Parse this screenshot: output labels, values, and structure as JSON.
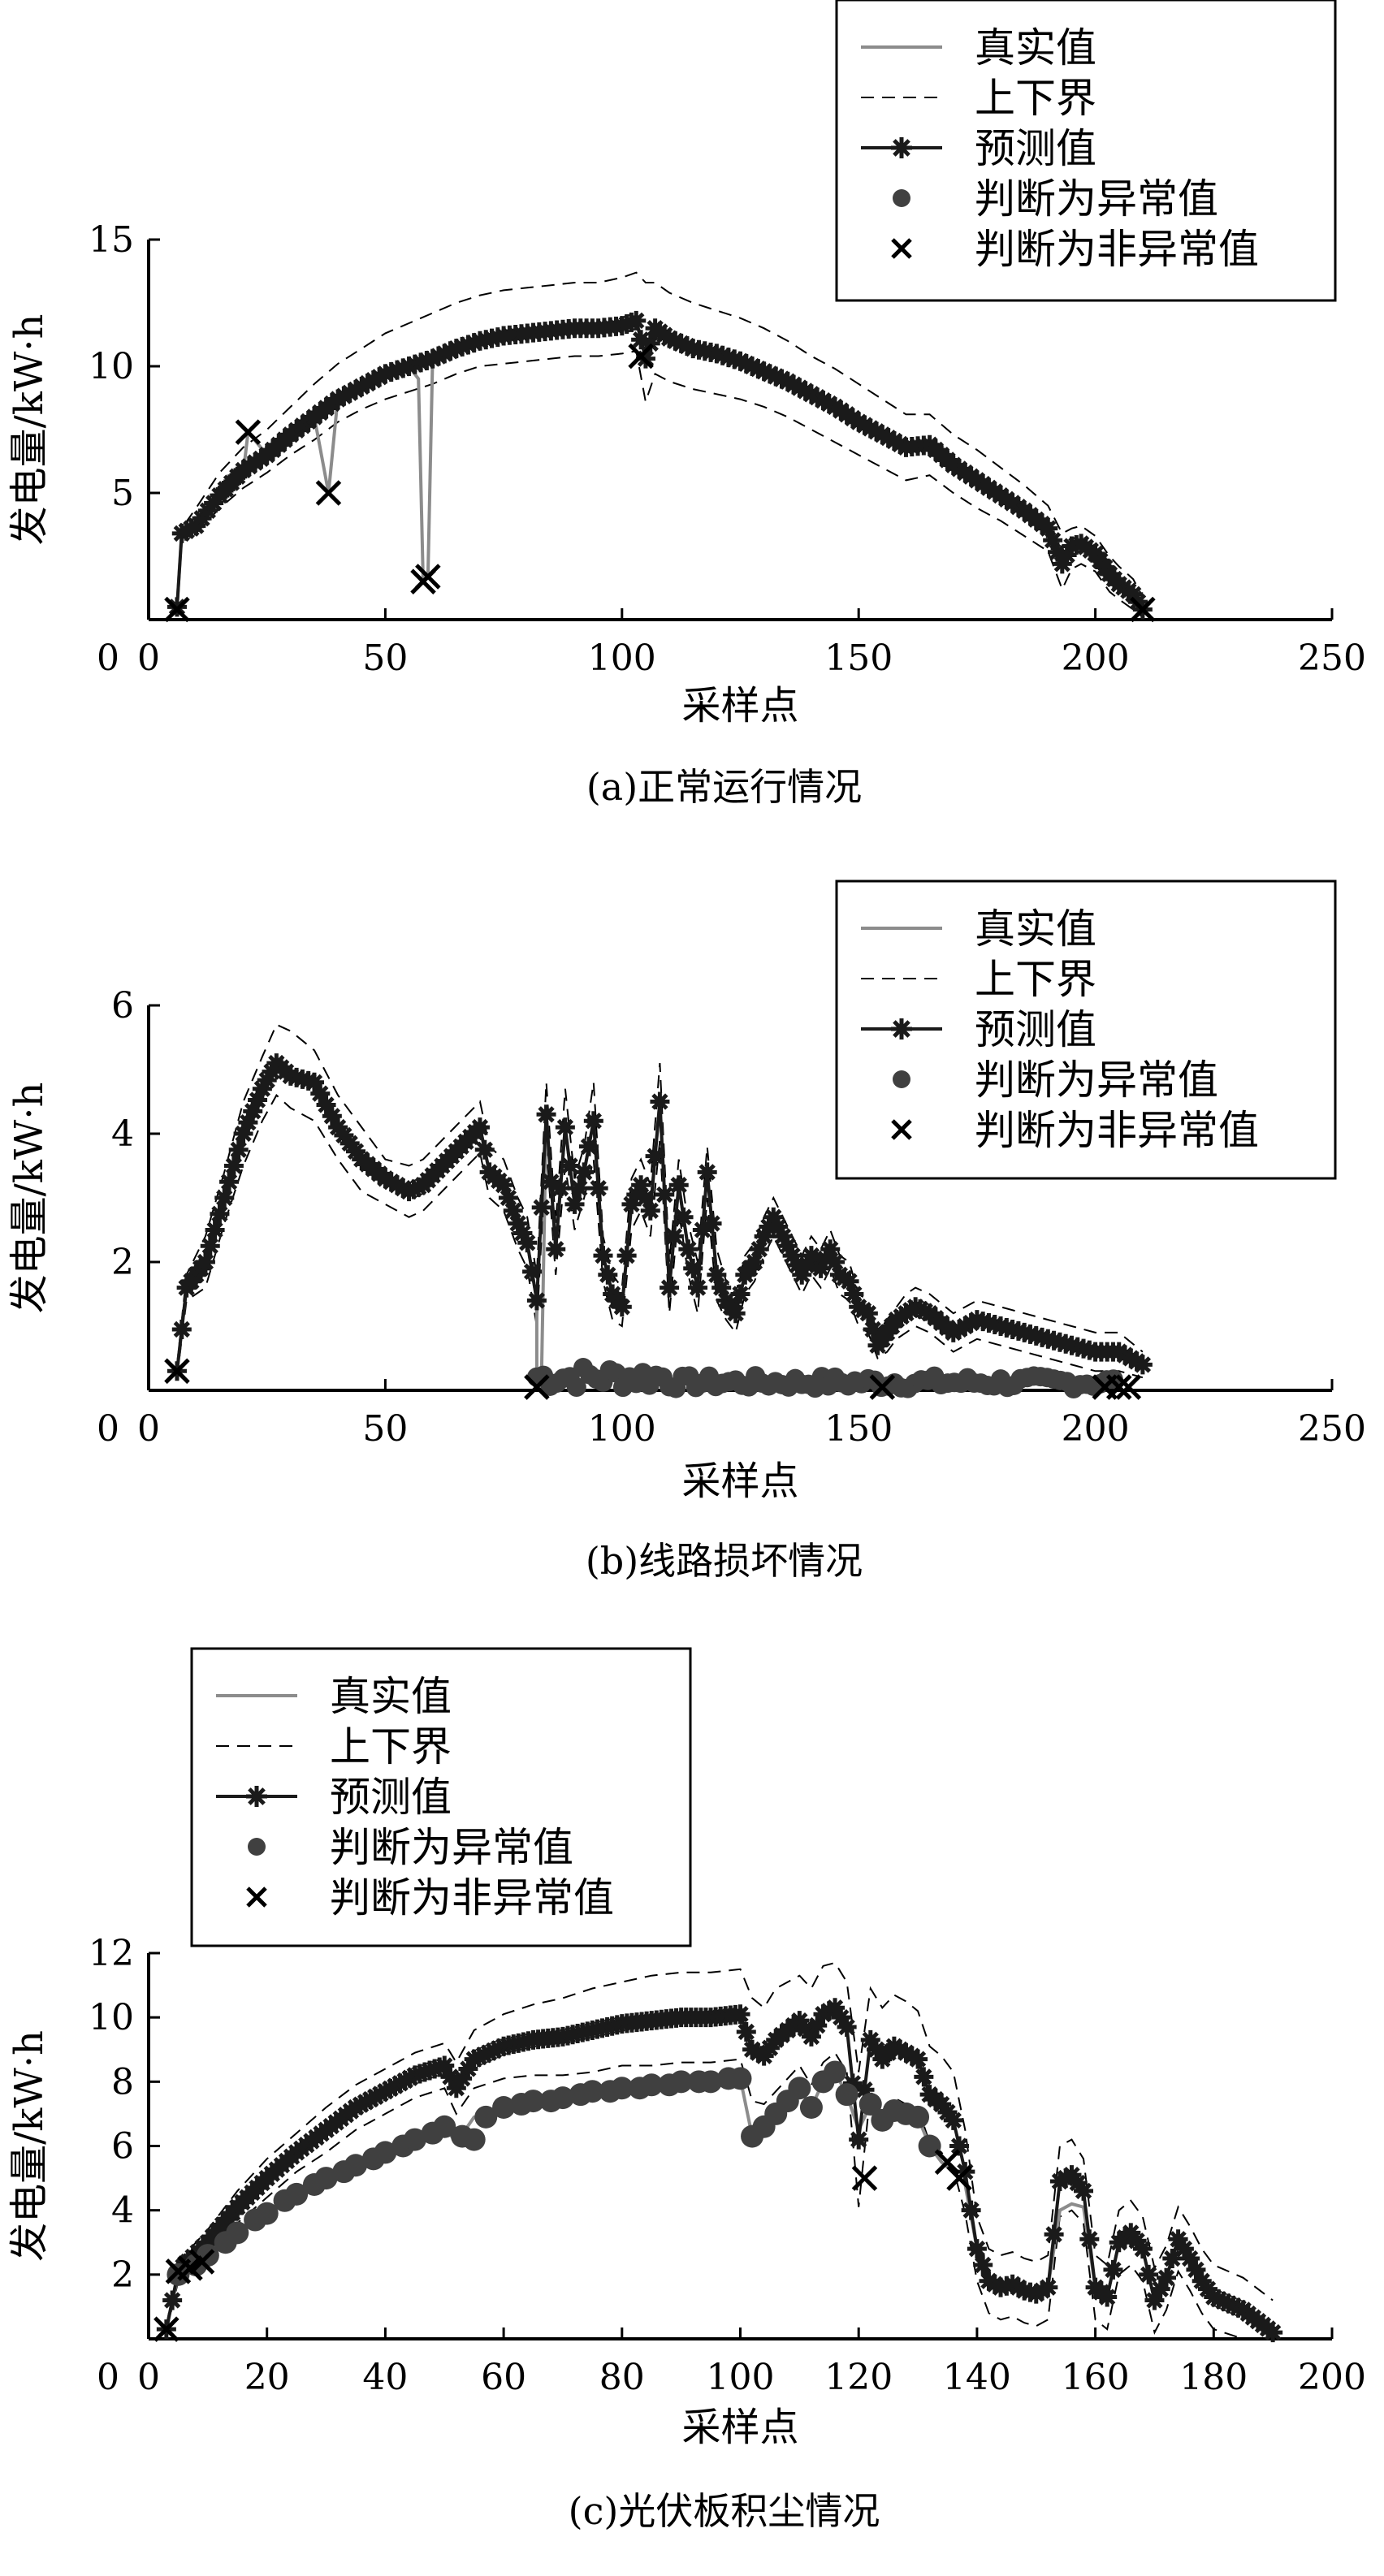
{
  "legend_entries": [
    "真实值",
    "上下界",
    "预测值",
    "判断为异常值",
    "判断为非异常值"
  ],
  "colors": {
    "actual": "#8c8c8c",
    "bounds": "#000000",
    "predicted": "#1a1a1a",
    "anomaly": "#404040",
    "normal": "#000000"
  },
  "chart_data": [
    {
      "type": "line",
      "caption": "(a)正常运行情况",
      "xlabel": "采样点",
      "ylabel": "发电量/kW·h",
      "xlim": [
        0,
        250
      ],
      "ylim": [
        0,
        15
      ],
      "xticks": [
        0,
        50,
        100,
        150,
        200,
        250
      ],
      "yticks": [
        5,
        10,
        15
      ],
      "legend_position": "top-right",
      "series_names": [
        "真实值",
        "上下界",
        "预测值",
        "判断为异常值",
        "判断为非异常值"
      ],
      "x": [
        6,
        7,
        10,
        15,
        20,
        25,
        30,
        35,
        40,
        45,
        50,
        55,
        60,
        65,
        70,
        75,
        80,
        85,
        90,
        95,
        100,
        103,
        105,
        107,
        110,
        115,
        120,
        125,
        130,
        135,
        140,
        145,
        150,
        155,
        160,
        165,
        170,
        175,
        180,
        185,
        190,
        193,
        195,
        197,
        200,
        203,
        205,
        208,
        210
      ],
      "actual": [
        0.5,
        3.5,
        3.8,
        5,
        5.8,
        6.5,
        7.3,
        8,
        8.8,
        9.2,
        9.7,
        10,
        10.4,
        10.8,
        11,
        11.2,
        11.3,
        11.4,
        11.5,
        11.5,
        11.7,
        11.9,
        10.3,
        11.5,
        11.1,
        10.7,
        10.5,
        10.2,
        9.9,
        9.4,
        8.9,
        8.4,
        7.9,
        7.3,
        6.7,
        6.9,
        6.1,
        5.5,
        4.9,
        4.3,
        3.6,
        2.4,
        2.8,
        3.0,
        2.6,
        1.8,
        1.4,
        0.9,
        0.4
      ],
      "predicted": [
        0.5,
        3.4,
        3.7,
        4.9,
        5.9,
        6.5,
        7.3,
        8.0,
        8.7,
        9.2,
        9.7,
        10.0,
        10.3,
        10.7,
        11.0,
        11.2,
        11.3,
        11.4,
        11.5,
        11.5,
        11.6,
        11.8,
        10.3,
        11.5,
        11.1,
        10.7,
        10.5,
        10.2,
        9.8,
        9.4,
        8.9,
        8.4,
        7.8,
        7.3,
        6.8,
        6.9,
        6.1,
        5.5,
        4.9,
        4.3,
        3.6,
        2.2,
        2.9,
        3.0,
        2.6,
        1.8,
        1.4,
        1.0,
        0.4
      ],
      "upper": [
        0.5,
        3.6,
        4.4,
        5.8,
        6.8,
        7.5,
        8.4,
        9.3,
        10.1,
        10.7,
        11.3,
        11.7,
        12.1,
        12.5,
        12.8,
        13,
        13.1,
        13.2,
        13.3,
        13.3,
        13.5,
        13.7,
        13.3,
        13.3,
        12.9,
        12.5,
        12.2,
        11.9,
        11.5,
        11.0,
        10.4,
        9.9,
        9.3,
        8.7,
        8.1,
        8.1,
        7.3,
        6.7,
        6.0,
        5.3,
        4.5,
        3.4,
        3.6,
        3.7,
        3.3,
        2.5,
        2.1,
        1.6,
        0.9
      ],
      "lower": [
        0.5,
        3.2,
        3.4,
        4.4,
        5.2,
        5.8,
        6.5,
        7.1,
        7.8,
        8.3,
        8.7,
        9.0,
        9.3,
        9.7,
        10.0,
        10.1,
        10.2,
        10.3,
        10.4,
        10.4,
        10.5,
        10.6,
        8.6,
        9.7,
        9.4,
        9.1,
        8.9,
        8.7,
        8.4,
        8.0,
        7.5,
        7.0,
        6.5,
        6.0,
        5.5,
        5.7,
        5.0,
        4.4,
        3.9,
        3.3,
        2.7,
        1.2,
        2.0,
        2.2,
        1.9,
        1.1,
        0.8,
        0.4,
        0.1
      ],
      "actual_dips": [
        [
          21,
          7.4
        ],
        [
          38,
          5.0
        ],
        [
          57,
          9.5
        ],
        [
          58,
          1.5
        ],
        [
          59,
          1.7
        ]
      ],
      "normal_marks": [
        [
          6,
          0.4
        ],
        [
          21,
          7.4
        ],
        [
          38,
          5.0
        ],
        [
          58,
          1.5
        ],
        [
          59,
          1.7
        ],
        [
          104,
          10.4
        ],
        [
          210,
          0.4
        ]
      ],
      "anomaly_marks": []
    },
    {
      "type": "line",
      "caption": "(b)线路损坏情况",
      "xlabel": "采样点",
      "ylabel": "发电量/kW·h",
      "xlim": [
        0,
        250
      ],
      "ylim": [
        0,
        6
      ],
      "xticks": [
        0,
        50,
        100,
        150,
        200,
        250
      ],
      "yticks": [
        2,
        4,
        6
      ],
      "legend_position": "top-right",
      "series_names": [
        "真实值",
        "上下界",
        "预测值",
        "判断为异常值",
        "判断为非异常值"
      ],
      "x": [
        6,
        8,
        12,
        16,
        20,
        24,
        27,
        30,
        35,
        40,
        45,
        50,
        55,
        58,
        62,
        66,
        70,
        72,
        75,
        78,
        80,
        82,
        84,
        86,
        88,
        90,
        92,
        94,
        96,
        98,
        100,
        102,
        104,
        106,
        108,
        110,
        112,
        114,
        116,
        118,
        120,
        122,
        124,
        126,
        128,
        130,
        132,
        134,
        136,
        138,
        140,
        142,
        144,
        146,
        148,
        150,
        152,
        154,
        156,
        158,
        160,
        162,
        165,
        170,
        175,
        180,
        185,
        190,
        195,
        200,
        205,
        210
      ],
      "predicted": [
        0.3,
        1.6,
        2.0,
        3.0,
        4.0,
        4.7,
        5.1,
        4.9,
        4.8,
        4.1,
        3.6,
        3.3,
        3.1,
        3.2,
        3.5,
        3.8,
        4.1,
        3.4,
        3.2,
        2.6,
        2.3,
        1.4,
        4.3,
        2.2,
        4.1,
        2.9,
        3.4,
        4.2,
        2.1,
        1.5,
        1.3,
        2.9,
        3.2,
        2.8,
        4.5,
        1.6,
        3.2,
        2.2,
        1.6,
        3.4,
        1.8,
        1.4,
        1.2,
        1.8,
        2.0,
        2.4,
        2.7,
        2.4,
        2.1,
        1.8,
        2.1,
        1.9,
        2.2,
        1.8,
        1.7,
        1.3,
        1.2,
        0.7,
        0.9,
        1.1,
        1.2,
        1.3,
        1.2,
        0.9,
        1.1,
        1.0,
        0.9,
        0.8,
        0.7,
        0.6,
        0.6,
        0.4
      ],
      "upper": [
        0.4,
        1.8,
        2.4,
        3.4,
        4.5,
        5.2,
        5.7,
        5.6,
        5.3,
        4.6,
        4.1,
        3.6,
        3.5,
        3.6,
        3.9,
        4.2,
        4.5,
        3.8,
        3.6,
        3.0,
        2.7,
        1.8,
        4.8,
        2.6,
        4.7,
        3.3,
        3.8,
        4.8,
        2.4,
        1.8,
        1.6,
        3.3,
        3.6,
        3.2,
        5.1,
        2.0,
        3.6,
        2.6,
        2.0,
        3.8,
        2.2,
        1.7,
        1.5,
        2.1,
        2.3,
        2.7,
        3.0,
        2.7,
        2.4,
        2.1,
        2.4,
        2.2,
        2.5,
        2.1,
        2.0,
        1.5,
        1.4,
        0.9,
        1.1,
        1.3,
        1.5,
        1.6,
        1.5,
        1.2,
        1.4,
        1.3,
        1.2,
        1.1,
        1.0,
        0.9,
        0.9,
        0.6
      ],
      "lower": [
        0.2,
        1.4,
        1.6,
        2.6,
        3.5,
        4.2,
        4.6,
        4.4,
        4.2,
        3.6,
        3.1,
        2.9,
        2.7,
        2.8,
        3.1,
        3.4,
        3.7,
        3.0,
        2.8,
        2.2,
        1.9,
        1.0,
        3.8,
        1.8,
        3.5,
        2.5,
        3.0,
        3.6,
        1.7,
        1.1,
        1.0,
        2.5,
        2.8,
        2.4,
        3.9,
        1.2,
        2.8,
        1.8,
        1.2,
        3.0,
        1.4,
        1.1,
        0.9,
        1.5,
        1.7,
        2.1,
        2.4,
        2.1,
        1.8,
        1.5,
        1.8,
        1.6,
        1.9,
        1.5,
        1.4,
        1.0,
        0.9,
        0.5,
        0.6,
        0.8,
        0.9,
        1.0,
        0.9,
        0.6,
        0.8,
        0.7,
        0.6,
        0.5,
        0.4,
        0.3,
        0.3,
        0.2
      ],
      "anomaly_band": {
        "x_start": 82,
        "x_end": 205,
        "y_min": 0.02,
        "y_max": 0.4
      },
      "normal_marks": [
        [
          6,
          0.3
        ],
        [
          82,
          0.05
        ],
        [
          155,
          0.05
        ],
        [
          202,
          0.05
        ],
        [
          205,
          0.05
        ],
        [
          207,
          0.05
        ]
      ],
      "anomaly_marks": []
    },
    {
      "type": "line",
      "caption": "(c)光伏板积尘情况",
      "xlabel": "采样点",
      "ylabel": "发电量/kW·h",
      "xlim": [
        0,
        200
      ],
      "ylim": [
        0,
        12
      ],
      "xticks": [
        0,
        20,
        40,
        60,
        80,
        100,
        120,
        140,
        160,
        180,
        200
      ],
      "yticks": [
        2,
        4,
        6,
        8,
        10,
        12
      ],
      "legend_position": "top-left",
      "series_names": [
        "真实值",
        "上下界",
        "预测值",
        "判断为异常值",
        "判断为非异常值"
      ],
      "x": [
        3,
        5,
        10,
        15,
        20,
        25,
        30,
        35,
        40,
        45,
        50,
        52,
        55,
        60,
        65,
        70,
        75,
        80,
        85,
        90,
        95,
        100,
        102,
        104,
        106,
        108,
        110,
        112,
        114,
        116,
        118,
        120,
        122,
        124,
        126,
        128,
        130,
        132,
        134,
        136,
        138,
        140,
        142,
        144,
        146,
        148,
        150,
        152,
        154,
        156,
        158,
        160,
        162,
        164,
        166,
        168,
        170,
        172,
        174,
        176,
        178,
        180,
        185,
        190
      ],
      "predicted": [
        0.3,
        2.1,
        3.0,
        4.1,
        5.0,
        5.8,
        6.5,
        7.2,
        7.7,
        8.2,
        8.5,
        7.8,
        8.7,
        9.1,
        9.3,
        9.4,
        9.6,
        9.8,
        9.9,
        10.0,
        10.0,
        10.1,
        9.0,
        8.8,
        9.3,
        9.6,
        9.9,
        9.4,
        10.1,
        10.3,
        9.7,
        6.2,
        9.3,
        8.7,
        9.1,
        8.9,
        8.7,
        7.6,
        7.3,
        6.8,
        5.2,
        2.8,
        1.8,
        1.6,
        1.7,
        1.5,
        1.4,
        1.6,
        4.9,
        5.1,
        4.6,
        1.6,
        1.3,
        3.0,
        3.3,
        2.8,
        1.2,
        1.9,
        3.1,
        2.5,
        1.8,
        1.3,
        0.9,
        0.2
      ],
      "upper": [
        0.4,
        2.4,
        3.4,
        4.6,
        5.6,
        6.4,
        7.2,
        7.9,
        8.4,
        8.9,
        9.2,
        8.6,
        9.6,
        10.1,
        10.4,
        10.6,
        10.9,
        11.1,
        11.3,
        11.4,
        11.4,
        11.5,
        10.6,
        10.3,
        10.9,
        11.1,
        11.3,
        10.9,
        11.6,
        11.7,
        11.1,
        8.3,
        10.9,
        10.3,
        10.7,
        10.5,
        10.2,
        9.1,
        8.8,
        8.3,
        6.5,
        3.8,
        2.8,
        2.6,
        2.7,
        2.5,
        2.4,
        2.6,
        6.0,
        6.2,
        5.6,
        2.6,
        2.3,
        4.0,
        4.3,
        3.8,
        2.2,
        2.9,
        4.1,
        3.5,
        2.8,
        2.3,
        1.9,
        1.2
      ],
      "lower": [
        0.2,
        1.8,
        2.6,
        3.6,
        4.4,
        5.2,
        5.8,
        6.5,
        7.0,
        7.5,
        7.8,
        7.0,
        7.8,
        8.1,
        8.2,
        8.2,
        8.3,
        8.5,
        8.5,
        8.6,
        8.6,
        8.7,
        7.4,
        7.3,
        7.7,
        8.1,
        8.5,
        7.9,
        8.6,
        8.9,
        8.3,
        4.1,
        7.7,
        7.1,
        7.5,
        7.3,
        7.2,
        6.1,
        5.8,
        5.3,
        3.9,
        1.8,
        0.8,
        0.6,
        0.7,
        0.5,
        0.4,
        0.6,
        3.8,
        4.0,
        3.6,
        0.6,
        0.3,
        2.0,
        2.3,
        1.8,
        0.2,
        0.9,
        2.1,
        1.5,
        0.8,
        0.3,
        0.0,
        0.0
      ],
      "actual": [
        0.3,
        2.0,
        2.6,
        3.3,
        3.9,
        4.5,
        5.0,
        5.4,
        5.8,
        6.2,
        6.6,
        6.1,
        6.9,
        7.2,
        7.4,
        7.5,
        7.7,
        7.8,
        7.9,
        8.0,
        8.0,
        8.1,
        6.3,
        6.6,
        7.0,
        7.4,
        7.8,
        7.2,
        8.0,
        8.3,
        7.6,
        6.5,
        7.3,
        6.8,
        7.1,
        7.0,
        6.9,
        6.0,
        5.5,
        5.2,
        4.8,
        2.8,
        1.8,
        1.6,
        1.7,
        1.5,
        1.4,
        1.6,
        4.0,
        4.2,
        4.1,
        1.6,
        1.3,
        3.0,
        3.2,
        2.8,
        1.2,
        1.9,
        3.1,
        2.5,
        1.8,
        1.3,
        0.9,
        0.2
      ],
      "anomaly_marks": [
        [
          5,
          2.0
        ],
        [
          8,
          2.3
        ],
        [
          10,
          2.6
        ],
        [
          13,
          3.0
        ],
        [
          15,
          3.3
        ],
        [
          18,
          3.7
        ],
        [
          20,
          3.9
        ],
        [
          23,
          4.3
        ],
        [
          25,
          4.5
        ],
        [
          28,
          4.8
        ],
        [
          30,
          5.0
        ],
        [
          33,
          5.2
        ],
        [
          35,
          5.4
        ],
        [
          38,
          5.6
        ],
        [
          40,
          5.8
        ],
        [
          43,
          6.0
        ],
        [
          45,
          6.2
        ],
        [
          48,
          6.4
        ],
        [
          50,
          6.6
        ],
        [
          53,
          6.3
        ],
        [
          55,
          6.2
        ],
        [
          57,
          6.9
        ],
        [
          60,
          7.2
        ],
        [
          63,
          7.3
        ],
        [
          65,
          7.4
        ],
        [
          68,
          7.4
        ],
        [
          70,
          7.5
        ],
        [
          73,
          7.6
        ],
        [
          75,
          7.7
        ],
        [
          78,
          7.7
        ],
        [
          80,
          7.8
        ],
        [
          83,
          7.8
        ],
        [
          85,
          7.9
        ],
        [
          88,
          7.9
        ],
        [
          90,
          8.0
        ],
        [
          93,
          8.0
        ],
        [
          95,
          8.0
        ],
        [
          98,
          8.1
        ],
        [
          100,
          8.1
        ],
        [
          102,
          6.3
        ],
        [
          104,
          6.6
        ],
        [
          106,
          7.0
        ],
        [
          108,
          7.4
        ],
        [
          110,
          7.8
        ],
        [
          112,
          7.2
        ],
        [
          114,
          8.0
        ],
        [
          116,
          8.3
        ],
        [
          118,
          7.6
        ],
        [
          122,
          7.3
        ],
        [
          124,
          6.8
        ],
        [
          126,
          7.1
        ],
        [
          128,
          7.0
        ],
        [
          130,
          6.9
        ],
        [
          132,
          6.0
        ]
      ],
      "normal_marks": [
        [
          3,
          0.3
        ],
        [
          5,
          2.1
        ],
        [
          7,
          2.2
        ],
        [
          9,
          2.4
        ],
        [
          121,
          5.0
        ],
        [
          135,
          5.5
        ],
        [
          137,
          5.0
        ]
      ]
    }
  ]
}
